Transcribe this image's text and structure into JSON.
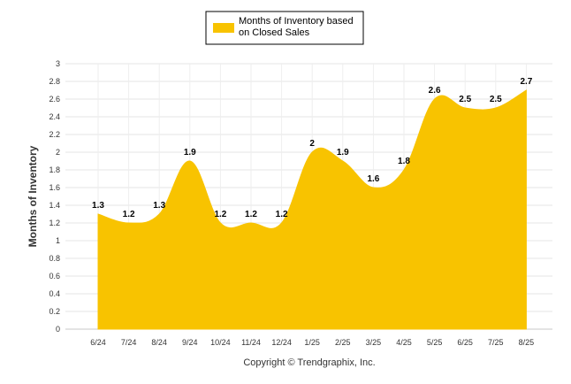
{
  "chart_data": {
    "type": "area",
    "title": "",
    "ylabel": "Months of Inventory",
    "xlabel": "",
    "ylim": [
      0,
      3
    ],
    "ytick_step": 0.2,
    "grid": true,
    "legend_position": "top-center",
    "categories": [
      "6/24",
      "7/24",
      "8/24",
      "9/24",
      "10/24",
      "11/24",
      "12/24",
      "1/25",
      "2/25",
      "3/25",
      "4/25",
      "5/25",
      "6/25",
      "7/25",
      "8/25"
    ],
    "series": [
      {
        "name": "Months of Inventory based on Closed Sales",
        "values": [
          1.3,
          1.2,
          1.3,
          1.9,
          1.2,
          1.2,
          1.2,
          2.0,
          1.9,
          1.6,
          1.8,
          2.6,
          2.5,
          2.5,
          2.7
        ],
        "data_labels": [
          "1.3",
          "1.2",
          "1.3",
          "1.9",
          "1.2",
          "1.2",
          "1.2",
          "2",
          "1.9",
          "1.6",
          "1.8",
          "2.6",
          "2.5",
          "2.5",
          "2.7"
        ],
        "color": "#f8c300"
      }
    ]
  },
  "legend": {
    "line1": "Months of Inventory based",
    "line2": "on Closed Sales"
  },
  "footer": {
    "copyright": "Copyright © Trendgraphix, Inc."
  }
}
